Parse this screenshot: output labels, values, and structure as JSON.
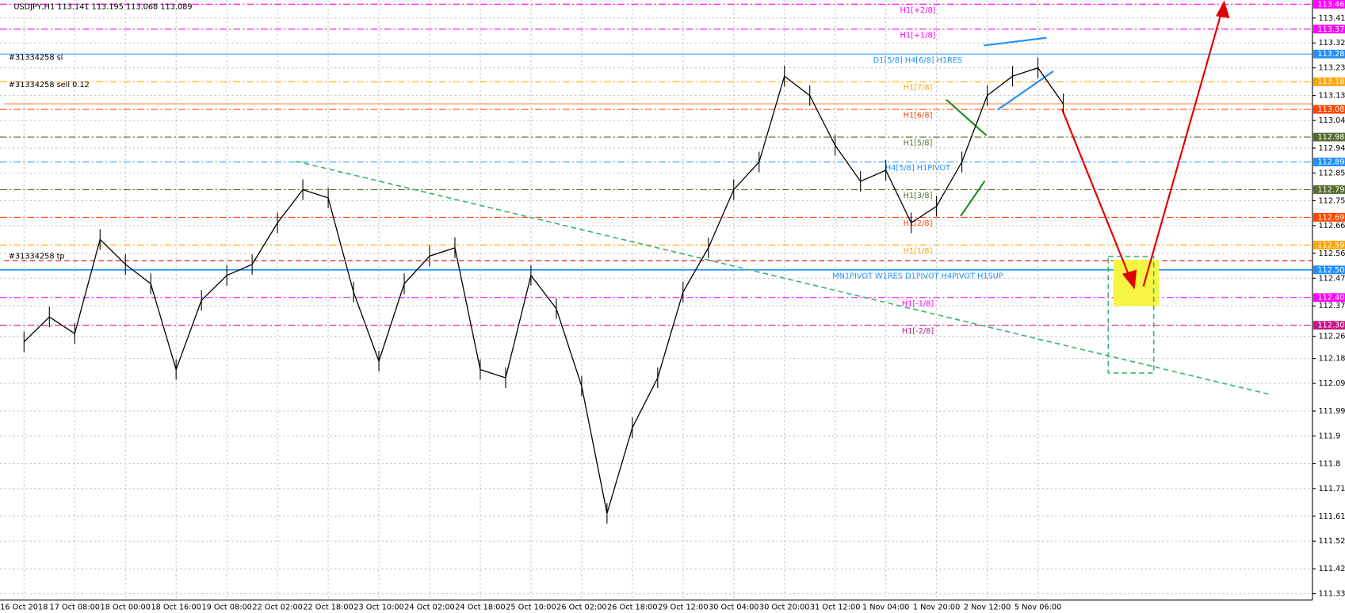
{
  "chart_data": {
    "type": "line",
    "title": "USDJPY,H1  113.141 113.195 113.068 113.089",
    "categories": [
      "16 Oct 2018",
      null,
      "17 Oct 08:00",
      null,
      "18 Oct 00:00",
      null,
      "18 Oct 16:00",
      null,
      "19 Oct 08:00",
      null,
      "22 Oct 02:00",
      null,
      "22 Oct 18:00",
      null,
      "23 Oct 10:00",
      null,
      "24 Oct 02:00",
      null,
      "24 Oct 18:00",
      null,
      "25 Oct 10:00",
      null,
      "26 Oct 02:00",
      null,
      "26 Oct 18:00",
      null,
      "29 Oct 12:00",
      null,
      "30 Oct 04:00",
      null,
      "30 Oct 20:00",
      null,
      "31 Oct 12:00",
      null,
      "1 Nov 04:00",
      null,
      "1 Nov 20:00",
      null,
      "2 Nov 12:00",
      null,
      "5 Nov 06:00",
      null
    ],
    "values": [
      112.24,
      112.33,
      112.27,
      112.61,
      112.52,
      112.45,
      112.14,
      112.39,
      112.48,
      112.52,
      112.67,
      112.79,
      112.76,
      112.42,
      112.17,
      112.45,
      112.55,
      112.58,
      112.14,
      112.11,
      112.48,
      112.36,
      112.08,
      111.62,
      111.93,
      112.11,
      112.42,
      112.58,
      112.79,
      112.89,
      113.2,
      113.13,
      112.95,
      112.82,
      112.86,
      112.67,
      112.73,
      112.89,
      113.13,
      113.2,
      113.23,
      113.1
    ],
    "color": "#000000",
    "ylim": [
      111.307,
      113.475
    ],
    "yticks": [
      113.41,
      113.32,
      113.23,
      113.13,
      113.04,
      112.94,
      112.85,
      112.75,
      112.66,
      112.56,
      112.47,
      112.37,
      112.26,
      112.18,
      112.09,
      111.99,
      111.9,
      111.8,
      111.71,
      111.61,
      111.52,
      111.42,
      111.33
    ],
    "grid": true,
    "levels": [
      {
        "value": 113.46,
        "label": "113.46",
        "name": "H1[+2/8]",
        "color": "#ff00ff"
      },
      {
        "value": 113.37,
        "label": "113.37",
        "name": "H1[+1/8]",
        "color": "#ff00ff"
      },
      {
        "value": 113.28,
        "label": "113.28",
        "name": "D1[5/8] H4[6/8] H1RES",
        "color": "#1e90ff"
      },
      {
        "value": 113.18,
        "label": "113.18",
        "name": "H1[7/8]",
        "color": "#ffa500"
      },
      {
        "value": 113.08,
        "label": "113.08",
        "name": "H1[6/8]",
        "color": "#ff4500"
      },
      {
        "value": 112.98,
        "label": "112.98",
        "name": "H1[5/8]",
        "color": "#556b2f"
      },
      {
        "value": 112.89,
        "label": "112.89",
        "name": "H4[5/8] H1PIVOT",
        "color": "#1e90ff"
      },
      {
        "value": 112.79,
        "label": "112.79",
        "name": "H1[3/8]",
        "color": "#556b2f"
      },
      {
        "value": 112.69,
        "label": "112.69",
        "name": "H1[2/8]",
        "color": "#ff4500"
      },
      {
        "value": 112.59,
        "label": "112.59",
        "name": "H1[1/8]",
        "color": "#ffa500"
      },
      {
        "value": 112.5,
        "label": "112.50",
        "name": "MN1PIVOT W1RES D1PIVOT H4PIVOT H1SUP",
        "color": "#1e90ff"
      },
      {
        "value": 112.4,
        "label": "112.40",
        "name": "H1[-1/8]",
        "color": "#ff00ff"
      },
      {
        "value": 112.3,
        "label": "112.30",
        "name": "H1[-2/8]",
        "color": "#c71585"
      }
    ],
    "orders": [
      "#31334258 sl",
      "#31334258 sell 0.12",
      "#31334258 tp"
    ]
  }
}
